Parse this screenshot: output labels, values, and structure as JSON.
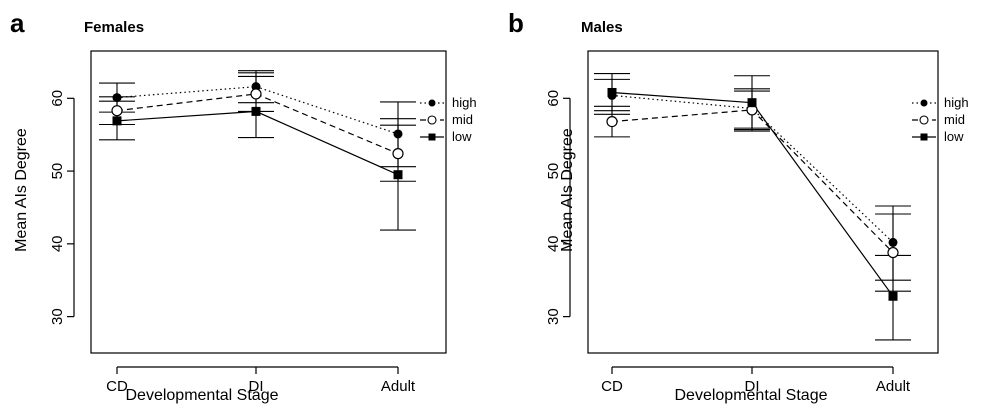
{
  "chart_data": [
    {
      "type": "line",
      "panel_letter": "a",
      "title": "Females",
      "xlabel": "Developmental Stage",
      "ylabel": "Mean AIs Degree",
      "categories": [
        "CD",
        "DI",
        "Adult"
      ],
      "yticks": [
        30,
        40,
        50,
        60
      ],
      "ylim": [
        25,
        66.5
      ],
      "legend_position": "right",
      "series": [
        {
          "name": "high",
          "values": [
            60.1,
            61.6,
            55.1
          ],
          "err_low": [
            58.1,
            59.4,
            50.6
          ],
          "err_high": [
            62.1,
            63.8,
            59.5
          ],
          "marker": "filled-circle",
          "dash": "dotted"
        },
        {
          "name": "mid",
          "values": [
            58.3,
            60.6,
            52.4
          ],
          "err_low": [
            56.4,
            58.2,
            48.6
          ],
          "err_high": [
            60.2,
            63.0,
            56.3
          ],
          "marker": "open-circle",
          "dash": "dashed"
        },
        {
          "name": "low",
          "values": [
            56.9,
            58.2,
            49.5
          ],
          "err_low": [
            54.3,
            54.6,
            41.9
          ],
          "err_high": [
            59.6,
            63.5,
            57.2
          ],
          "marker": "filled-square",
          "dash": "solid"
        }
      ]
    },
    {
      "type": "line",
      "panel_letter": "b",
      "title": "Males",
      "xlabel": "Developmental Stage",
      "ylabel": "Mean AIs Degree",
      "categories": [
        "CD",
        "DI",
        "Adult"
      ],
      "yticks": [
        30,
        40,
        50,
        60
      ],
      "ylim": [
        25,
        66.5
      ],
      "legend_position": "right",
      "series": [
        {
          "name": "high",
          "values": [
            60.4,
            58.6,
            40.2
          ],
          "err_low": [
            57.8,
            55.5,
            35.0
          ],
          "err_high": [
            63.4,
            61.3,
            45.2
          ],
          "marker": "filled-circle",
          "dash": "dotted"
        },
        {
          "name": "mid",
          "values": [
            56.8,
            58.4,
            38.8
          ],
          "err_low": [
            54.7,
            55.7,
            33.5
          ],
          "err_high": [
            58.9,
            61.0,
            44.1
          ],
          "marker": "open-circle",
          "dash": "dashed"
        },
        {
          "name": "low",
          "values": [
            60.8,
            59.4,
            32.8
          ],
          "err_low": [
            58.3,
            55.9,
            26.8
          ],
          "err_high": [
            62.6,
            63.1,
            38.4
          ],
          "marker": "filled-square",
          "dash": "solid"
        }
      ]
    }
  ]
}
